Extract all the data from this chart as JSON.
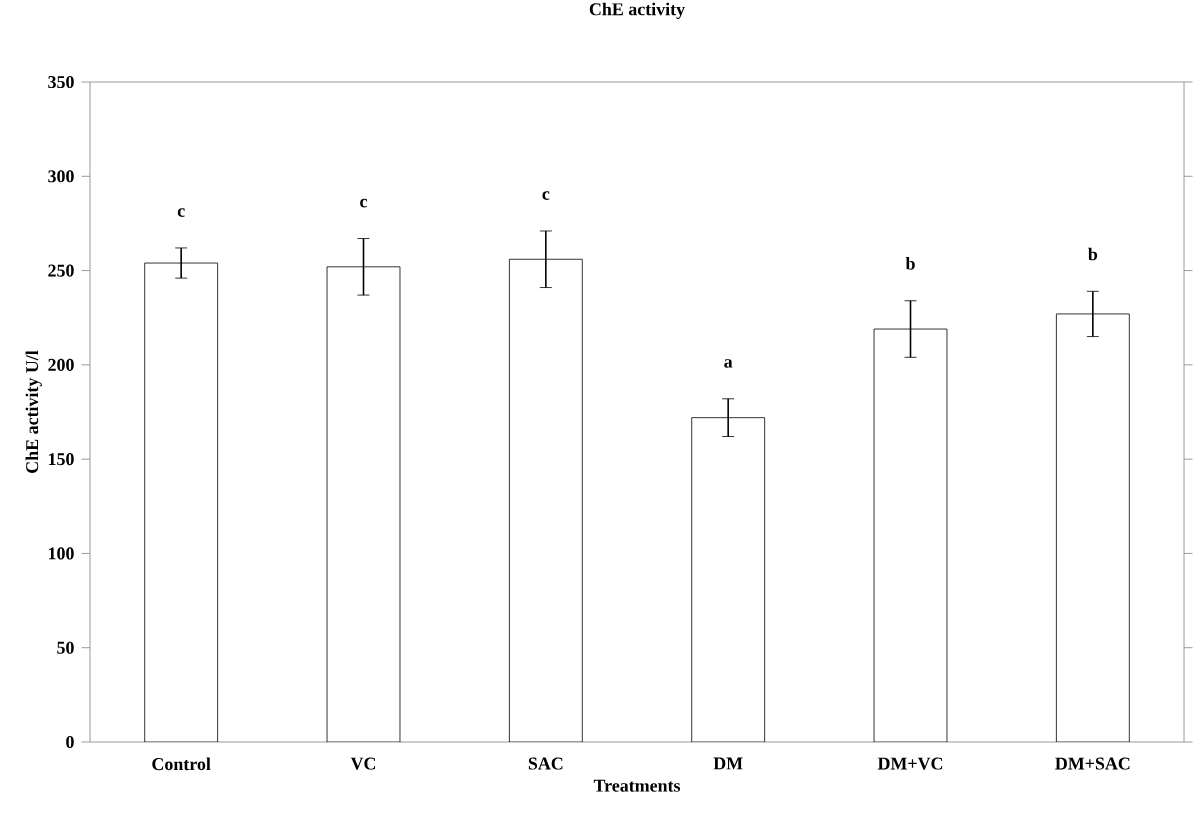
{
  "chart_data": {
    "type": "bar",
    "title": "ChE activity",
    "xlabel": "Treatments",
    "ylabel": "ChE activity U/l",
    "categories": [
      "Control",
      "VC",
      "SAC",
      "DM",
      "DM+VC",
      "DM+SAC"
    ],
    "values": [
      254,
      252,
      256,
      172,
      219,
      227
    ],
    "errors": [
      8,
      15,
      15,
      10,
      15,
      12
    ],
    "color": "#ffffff",
    "ylim": [
      0,
      350
    ],
    "yticks": [
      0,
      50,
      100,
      150,
      200,
      250,
      300,
      350
    ],
    "annotations": [
      "c",
      "c",
      "c",
      "a",
      "b",
      "b"
    ]
  }
}
